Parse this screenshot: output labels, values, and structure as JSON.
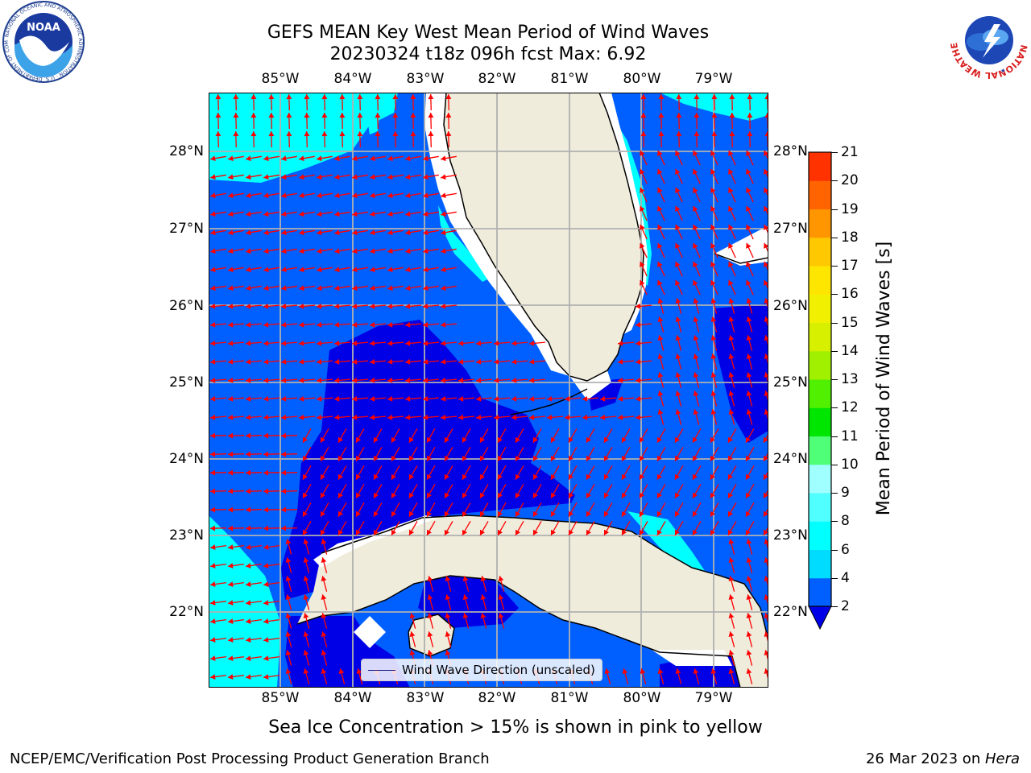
{
  "title": {
    "line1": "GEFS MEAN Key West Mean Period of Wind Waves",
    "line2": "20230324 t18z 096h fcst   Max: 6.92"
  },
  "logos": {
    "left": "NOAA",
    "left_ring": "NATIONAL OCEANIC AND ATMOSPHERIC ADMINISTRATION · U.S. DEPARTMENT OF COMMERCE",
    "right_ring": "NATIONAL WEATHER SERVICE"
  },
  "map": {
    "lon_labels": [
      "85°W",
      "84°W",
      "83°W",
      "82°W",
      "81°W",
      "80°W",
      "79°W"
    ],
    "lat_labels": [
      "28°N",
      "27°N",
      "26°N",
      "25°N",
      "24°N",
      "23°N",
      "22°N"
    ],
    "land_color": "#efecdc",
    "arrow_color": "#ff0000",
    "grid": true
  },
  "legend": {
    "label": "Wind Wave Direction (unscaled)"
  },
  "colorbar": {
    "label": "Mean Period of Wind Waves [s]",
    "ticks": [
      "2",
      "4",
      "6",
      "8",
      "9",
      "10",
      "11",
      "12",
      "13",
      "14",
      "15",
      "16",
      "17",
      "18",
      "19",
      "20",
      "21"
    ],
    "colors": [
      "#0060ff",
      "#00dcff",
      "#00ffff",
      "#50ffff",
      "#a0ffff",
      "#50ff78",
      "#00e600",
      "#50f000",
      "#a0f000",
      "#d7f000",
      "#f0f000",
      "#ffe600",
      "#ffc800",
      "#ff9600",
      "#ff6400",
      "#ff3200",
      "#ff0000"
    ],
    "under_color": "#0000e6"
  },
  "footer": {
    "note": "Sea Ice Concentration > 15% is shown in pink to yellow",
    "left": "NCEP/EMC/Verification Post Processing Product Generation Branch",
    "right_date": "26 Mar 2023 on ",
    "right_host": "Hera"
  }
}
